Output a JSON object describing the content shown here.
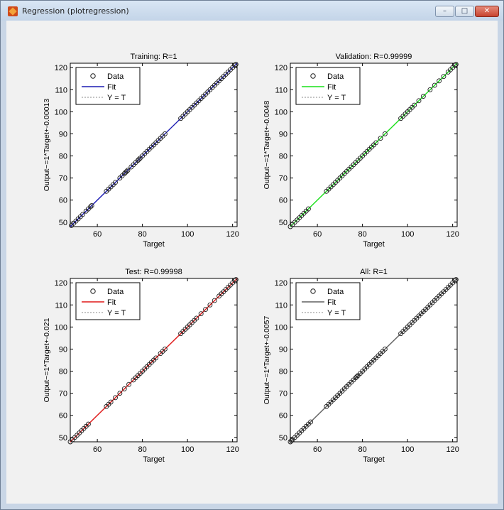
{
  "window": {
    "title": "Regression (plotregression)"
  },
  "controls": {
    "minimize": "–",
    "maximize": "□",
    "close": "✕"
  },
  "legend_labels": {
    "data": "Data",
    "fit": "Fit",
    "identity": "Y = T"
  },
  "colors": {
    "training": "#1b1bb4",
    "validation": "#19e019",
    "test": "#e01919",
    "all": "#606060"
  },
  "chart_data": [
    {
      "type": "scatter",
      "title": "Training: R=1",
      "xlabel": "Target",
      "ylabel": "Output~=1*Target+-0.00013",
      "xlim": [
        48,
        122
      ],
      "ylim": [
        48,
        122
      ],
      "xticks": [
        60,
        80,
        100,
        120
      ],
      "yticks": [
        50,
        60,
        70,
        80,
        90,
        100,
        110,
        120
      ],
      "fit_color": "#1b1bb4",
      "fit": {
        "slope": 1,
        "intercept": -0.00013
      },
      "x": [
        48.5,
        49.5,
        50.5,
        51.5,
        52.5,
        53.5,
        55,
        56,
        57,
        57.5,
        64,
        65,
        66,
        67,
        68,
        70,
        71,
        72,
        72.5,
        73,
        73.5,
        75,
        76,
        77,
        78,
        78.5,
        79,
        80,
        81,
        82,
        83,
        84,
        85,
        86,
        87,
        88,
        89,
        90,
        97,
        98,
        99,
        100,
        101,
        102,
        103,
        104,
        105,
        106,
        107,
        108,
        109,
        110,
        111,
        112,
        113,
        114,
        115,
        116,
        117,
        118,
        119,
        120,
        121,
        121.5
      ]
    },
    {
      "type": "scatter",
      "title": "Validation: R=0.99999",
      "xlabel": "Target",
      "ylabel": "Output~=1*Target+-0.0048",
      "xlim": [
        48,
        122
      ],
      "ylim": [
        48,
        122
      ],
      "xticks": [
        60,
        80,
        100,
        120
      ],
      "yticks": [
        50,
        60,
        70,
        80,
        90,
        100,
        110,
        120
      ],
      "fit_color": "#19e019",
      "fit": {
        "slope": 1,
        "intercept": -0.0048
      },
      "x": [
        48,
        49,
        50,
        51,
        52,
        53,
        54,
        55,
        56,
        64,
        65,
        66,
        67,
        68,
        69,
        70,
        71,
        72,
        73,
        74,
        75,
        76,
        77,
        78,
        79,
        80,
        81,
        82,
        83,
        84,
        85,
        86,
        88,
        90,
        97,
        98,
        99,
        100,
        101,
        102,
        103,
        105,
        107,
        110,
        112,
        114,
        116,
        118,
        119,
        120,
        121,
        121.5
      ]
    },
    {
      "type": "scatter",
      "title": "Test: R=0.99998",
      "xlabel": "Target",
      "ylabel": "Output~=1*Target+-0.021",
      "xlim": [
        48,
        122
      ],
      "ylim": [
        48,
        122
      ],
      "xticks": [
        60,
        80,
        100,
        120
      ],
      "yticks": [
        50,
        60,
        70,
        80,
        90,
        100,
        110,
        120
      ],
      "fit_color": "#e01919",
      "fit": {
        "slope": 1,
        "intercept": -0.021
      },
      "x": [
        48,
        49,
        50,
        51,
        52,
        53,
        54,
        55,
        56,
        64,
        65,
        66,
        68,
        70,
        72,
        74,
        76,
        77,
        78,
        79,
        80,
        81,
        82,
        83,
        84,
        85,
        86,
        88,
        89,
        90,
        97,
        98,
        99,
        100,
        101,
        102,
        103,
        104,
        106,
        108,
        110,
        112,
        114,
        115,
        116,
        117,
        118,
        119,
        120,
        121,
        121.5
      ]
    },
    {
      "type": "scatter",
      "title": "All: R=1",
      "xlabel": "Target",
      "ylabel": "Output~=1*Target+-0.0057",
      "xlim": [
        48,
        122
      ],
      "ylim": [
        48,
        122
      ],
      "xticks": [
        60,
        80,
        100,
        120
      ],
      "yticks": [
        50,
        60,
        70,
        80,
        90,
        100,
        110,
        120
      ],
      "fit_color": "#606060",
      "fit": {
        "slope": 1,
        "intercept": -0.0057
      },
      "x": [
        48,
        48.5,
        49,
        50,
        51,
        52,
        53,
        54,
        55,
        56,
        57,
        64,
        65,
        66,
        67,
        68,
        69,
        70,
        71,
        72,
        73,
        74,
        75,
        76,
        77,
        77.5,
        78,
        79,
        80,
        81,
        82,
        83,
        84,
        85,
        86,
        87,
        88,
        89,
        90,
        97,
        98,
        99,
        100,
        101,
        102,
        103,
        104,
        105,
        106,
        107,
        108,
        109,
        110,
        111,
        112,
        113,
        114,
        115,
        116,
        117,
        118,
        119,
        120,
        121,
        121.5
      ]
    }
  ]
}
